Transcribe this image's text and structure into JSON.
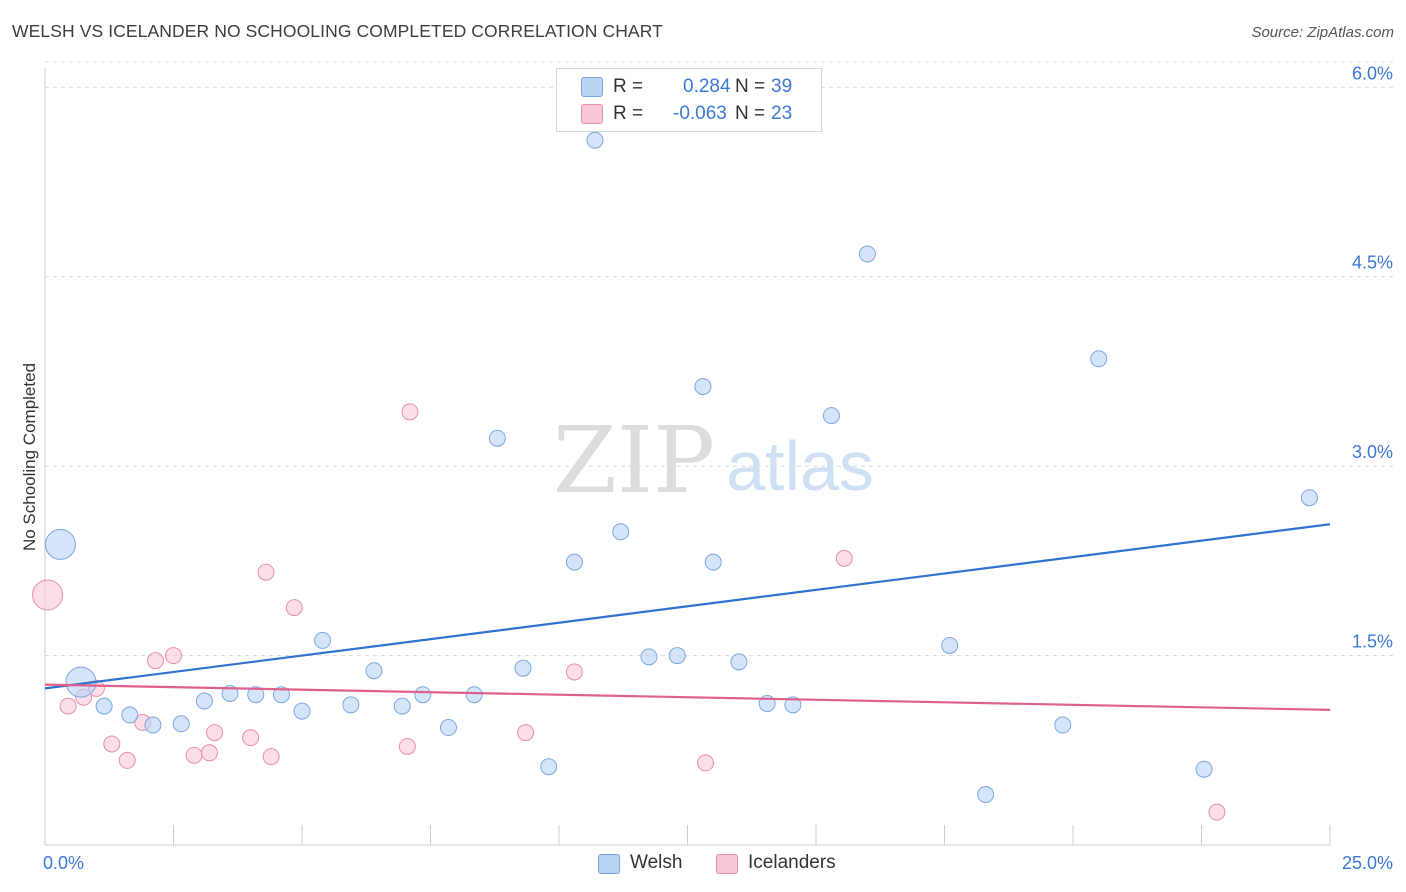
{
  "header": {
    "title": "WELSH VS ICELANDER NO SCHOOLING COMPLETED CORRELATION CHART",
    "source": "Source: ZipAtlas.com"
  },
  "watermark": {
    "zip": "ZIP",
    "atlas": "atlas"
  },
  "legend_top": {
    "welsh": {
      "r_label": "R =",
      "r_value": "0.284",
      "n_label": "N =",
      "n_value": "39"
    },
    "icelanders": {
      "r_label": "R =",
      "r_value": "-0.063",
      "n_label": "N =",
      "n_value": "23"
    }
  },
  "colors": {
    "welsh_fill": "#b9d3f5",
    "welsh_stroke": "#7ba7e0",
    "welsh_line": "#2f72d0",
    "icel_fill": "#f8c8d7",
    "icel_stroke": "#e88fac",
    "icel_line": "#e0608d",
    "tick_label": "#3a78d6",
    "grid": "#d8d8d8"
  },
  "chart_data": {
    "type": "scatter",
    "title": "WELSH VS ICELANDER NO SCHOOLING COMPLETED CORRELATION CHART",
    "xlabel": "",
    "ylabel": "No Schooling Completed",
    "xlim": [
      0,
      25
    ],
    "ylim": [
      0,
      6.2
    ],
    "x_tick_labels": [
      "0.0%",
      "25.0%"
    ],
    "y_ticks": [
      1.5,
      3.0,
      4.5,
      6.0
    ],
    "y_tick_labels": [
      "1.5%",
      "3.0%",
      "4.5%",
      "6.0%"
    ],
    "grid": "horizontal dashed",
    "legend_position": "bottom-center",
    "series": [
      {
        "name": "Welsh",
        "r": 0.284,
        "n": 39,
        "trend": {
          "x": [
            0,
            25
          ],
          "y": [
            1.24,
            2.54
          ]
        },
        "points": [
          {
            "x": 0.3,
            "y": 2.38,
            "size": "large"
          },
          {
            "x": 0.7,
            "y": 1.29,
            "size": "large"
          },
          {
            "x": 1.15,
            "y": 1.1
          },
          {
            "x": 1.65,
            "y": 1.03
          },
          {
            "x": 2.1,
            "y": 0.95
          },
          {
            "x": 2.65,
            "y": 0.96
          },
          {
            "x": 3.1,
            "y": 1.14
          },
          {
            "x": 3.6,
            "y": 1.2
          },
          {
            "x": 4.1,
            "y": 1.19
          },
          {
            "x": 4.6,
            "y": 1.19
          },
          {
            "x": 5.0,
            "y": 1.06
          },
          {
            "x": 5.4,
            "y": 1.62
          },
          {
            "x": 5.95,
            "y": 1.11
          },
          {
            "x": 6.4,
            "y": 1.38
          },
          {
            "x": 6.95,
            "y": 1.1
          },
          {
            "x": 7.35,
            "y": 1.19
          },
          {
            "x": 7.85,
            "y": 0.93
          },
          {
            "x": 8.35,
            "y": 1.19
          },
          {
            "x": 8.8,
            "y": 3.22
          },
          {
            "x": 9.3,
            "y": 1.4
          },
          {
            "x": 9.8,
            "y": 0.62
          },
          {
            "x": 10.3,
            "y": 2.24
          },
          {
            "x": 10.7,
            "y": 5.58
          },
          {
            "x": 11.2,
            "y": 2.48
          },
          {
            "x": 11.75,
            "y": 1.49
          },
          {
            "x": 12.3,
            "y": 1.5
          },
          {
            "x": 12.8,
            "y": 3.63
          },
          {
            "x": 13.0,
            "y": 2.24
          },
          {
            "x": 13.5,
            "y": 1.45
          },
          {
            "x": 14.05,
            "y": 1.12
          },
          {
            "x": 14.55,
            "y": 1.11
          },
          {
            "x": 15.3,
            "y": 3.4
          },
          {
            "x": 16.0,
            "y": 4.68
          },
          {
            "x": 17.6,
            "y": 1.58
          },
          {
            "x": 18.3,
            "y": 0.4
          },
          {
            "x": 19.8,
            "y": 0.95
          },
          {
            "x": 20.5,
            "y": 3.85
          },
          {
            "x": 22.55,
            "y": 0.6
          },
          {
            "x": 24.6,
            "y": 2.75
          }
        ]
      },
      {
        "name": "Icelanders",
        "r": -0.063,
        "n": 23,
        "trend": {
          "x": [
            0,
            25
          ],
          "y": [
            1.27,
            1.07
          ]
        },
        "points": [
          {
            "x": 0.05,
            "y": 1.98,
            "size": "large"
          },
          {
            "x": 0.45,
            "y": 1.1
          },
          {
            "x": 0.75,
            "y": 1.17
          },
          {
            "x": 1.0,
            "y": 1.24
          },
          {
            "x": 1.3,
            "y": 0.8
          },
          {
            "x": 1.6,
            "y": 0.67
          },
          {
            "x": 1.9,
            "y": 0.97
          },
          {
            "x": 2.15,
            "y": 1.46
          },
          {
            "x": 2.5,
            "y": 1.5
          },
          {
            "x": 2.9,
            "y": 0.71
          },
          {
            "x": 3.2,
            "y": 0.73
          },
          {
            "x": 3.3,
            "y": 0.89
          },
          {
            "x": 4.0,
            "y": 0.85
          },
          {
            "x": 4.3,
            "y": 2.16
          },
          {
            "x": 4.4,
            "y": 0.7
          },
          {
            "x": 4.85,
            "y": 1.88
          },
          {
            "x": 7.05,
            "y": 0.78
          },
          {
            "x": 7.1,
            "y": 3.43
          },
          {
            "x": 9.35,
            "y": 0.89
          },
          {
            "x": 10.3,
            "y": 1.37
          },
          {
            "x": 12.85,
            "y": 0.65
          },
          {
            "x": 15.55,
            "y": 2.27
          },
          {
            "x": 22.8,
            "y": 0.26
          }
        ]
      }
    ]
  },
  "legend_bottom": {
    "welsh": "Welsh",
    "icelanders": "Icelanders"
  }
}
